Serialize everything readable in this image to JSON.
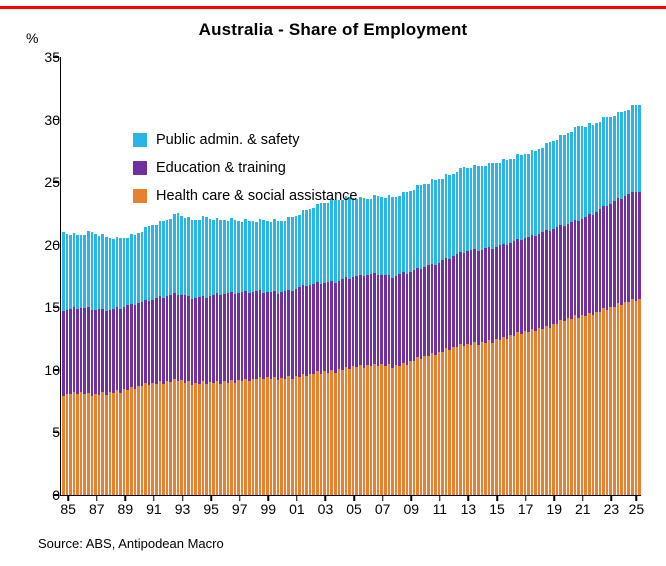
{
  "title": "Australia - Share of Employment",
  "y_axis_unit": "%",
  "source_note": "Source: ABS, Antipodean Macro",
  "accent_line_color": "#FF0000",
  "chart_data": {
    "type": "bar",
    "stacked": true,
    "bar_period": "quarterly",
    "years": [
      1985,
      1986,
      1987,
      1988,
      1989,
      1990,
      1991,
      1992,
      1993,
      1994,
      1995,
      1996,
      1997,
      1998,
      1999,
      2000,
      2001,
      2002,
      2003,
      2004,
      2005,
      2006,
      2007,
      2008,
      2009,
      2010,
      2011,
      2012,
      2013,
      2014,
      2015,
      2016,
      2017,
      2018,
      2019,
      2020,
      2021,
      2022,
      2023,
      2024,
      2025
    ],
    "quarters_in_last_year": 2,
    "series": [
      {
        "name": "Health care & social assistance",
        "color": "#E8802F",
        "values": [
          8.0,
          8.2,
          8.0,
          8.1,
          8.3,
          8.6,
          8.9,
          9.0,
          9.2,
          8.9,
          9.0,
          9.0,
          9.1,
          9.2,
          9.4,
          9.3,
          9.4,
          9.6,
          9.8,
          9.9,
          10.2,
          10.3,
          10.4,
          10.3,
          10.5,
          11.0,
          11.3,
          11.7,
          12.0,
          12.1,
          12.3,
          12.6,
          13.0,
          13.2,
          13.5,
          14.0,
          14.3,
          14.5,
          14.9,
          15.3,
          15.6
        ]
      },
      {
        "name": "Education & training",
        "color": "#7030A0",
        "values": [
          6.8,
          6.8,
          6.9,
          6.7,
          6.7,
          6.7,
          6.7,
          6.9,
          6.9,
          6.9,
          6.9,
          7.1,
          7.1,
          7.1,
          6.9,
          6.9,
          7.0,
          7.2,
          7.2,
          7.2,
          7.2,
          7.3,
          7.3,
          7.2,
          7.3,
          7.2,
          7.2,
          7.3,
          7.5,
          7.5,
          7.5,
          7.5,
          7.5,
          7.6,
          7.7,
          7.6,
          7.7,
          8.0,
          8.3,
          8.5,
          8.7
        ]
      },
      {
        "name": "Public admin. & safety",
        "color": "#29B5E8",
        "values": [
          6.2,
          5.8,
          6.1,
          5.8,
          5.5,
          5.5,
          5.9,
          6.0,
          6.4,
          6.2,
          6.3,
          5.9,
          5.8,
          5.6,
          5.7,
          5.7,
          5.8,
          6.0,
          6.3,
          6.5,
          6.4,
          6.1,
          6.2,
          6.3,
          6.4,
          6.6,
          6.7,
          6.6,
          6.7,
          6.7,
          6.7,
          6.7,
          6.7,
          6.7,
          7.0,
          7.2,
          7.5,
          7.1,
          7.0,
          6.8,
          6.9
        ]
      }
    ],
    "legend_series_order": [
      2,
      1,
      0
    ],
    "ylim": [
      0,
      35
    ],
    "y_ticks": [
      0,
      5,
      10,
      15,
      20,
      25,
      30,
      35
    ],
    "x_tick_labels": [
      "85",
      "87",
      "89",
      "91",
      "93",
      "95",
      "97",
      "99",
      "01",
      "03",
      "05",
      "07",
      "09",
      "11",
      "13",
      "15",
      "17",
      "19",
      "21",
      "23",
      "25"
    ],
    "grid": false,
    "legend_position": "top-left-inside"
  }
}
